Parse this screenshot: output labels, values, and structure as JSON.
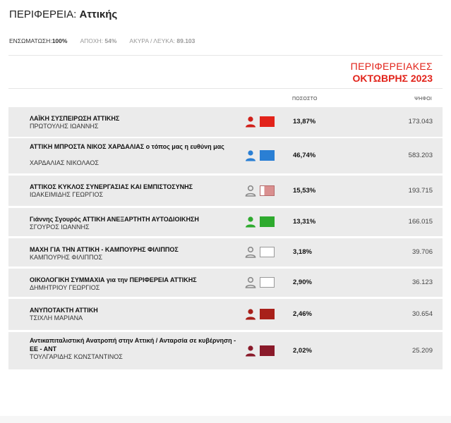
{
  "header": {
    "region_label": "ΠΕΡΙΦΕΡΕΙΑ:",
    "region_name": "Αττικής"
  },
  "stats": {
    "integration_label": "ΕΝΣΩΜΑΤΩΣΗ:",
    "integration_value": "100%",
    "abstention_label": "ΑΠΟΧΗ:",
    "abstention_value": "54%",
    "invalid_label": "ΑΚΥΡΑ / ΛΕΥΚΑ:",
    "invalid_value": "89.103"
  },
  "election": {
    "line1": "ΠΕΡΙΦΕΡΕΙΑΚΕΣ",
    "line2": "ΟΚΤΩΒΡΗΣ 2023"
  },
  "columns": {
    "percent": "ΠΟΣΟΣΤΟ",
    "votes": "ΨΗΦΟΙ"
  },
  "results": [
    {
      "party": "ΛΑΪΚΗ ΣΥΣΠΕΙΡΩΣΗ ΑΤΤΙΚΗΣ",
      "leader": "ΠΡΩΤΟΥΛΗΣ ΙΩΑΝΝΗΣ",
      "percent": "13,87%",
      "votes": "173.043",
      "color": "#e2231a",
      "person_color": "#d0201a",
      "icon": "person-icon"
    },
    {
      "party": "ΑΤΤΙΚΗ ΜΠΡΟΣΤΑ ΝΙΚΟΣ ΧΑΡΔΑΛΙΑΣ ο τόπος μας η ευθύνη μας",
      "leader": "ΧΑΡΔΑΛΙΑΣ ΝΙΚΟΛΑΟΣ",
      "percent": "46,74%",
      "votes": "583.203",
      "color": "#2a7fd4",
      "person_color": "#2a7fd4",
      "icon": "person-icon"
    },
    {
      "party": "ΑΤΤΙΚΟΣ ΚΥΚΛΟΣ ΣΥΝΕΡΓΑΣΙΑΣ ΚΑΙ ΕΜΠΙΣΤΟΣΥΝΗΣ",
      "leader": "ΙΩΑΚΕΙΜΙΔΗΣ ΓΕΩΡΓΙΟΣ",
      "percent": "15,53%",
      "votes": "193.715",
      "color": "#d98f8f",
      "person_color": "#8a8a8a",
      "icon": "person-outline-icon"
    },
    {
      "party": "Γιάννης Σγουρός ΑΤΤΙΚΗ ΑΝΕΞΑΡΤΗΤΗ ΑΥΤΟΔΙΟΙΚΗΣΗ",
      "leader": "ΣΓΟΥΡΟΣ ΙΩΑΝΝΗΣ",
      "percent": "13,31%",
      "votes": "166.015",
      "color": "#2eaa2e",
      "person_color": "#2eaa2e",
      "icon": "person-icon"
    },
    {
      "party": "ΜΑΧΗ ΓΙΑ ΤΗΝ ΑΤΤΙΚΗ - ΚΑΜΠΟΥΡΗΣ ΦΙΛΙΠΠΟΣ",
      "leader": "ΚΑΜΠΟΥΡΗΣ ΦΙΛΙΠΠΟΣ",
      "percent": "3,18%",
      "votes": "39.706",
      "color": "#ffffff",
      "person_color": "#8a8a8a",
      "icon": "person-outline-icon"
    },
    {
      "party": "ΟΙΚΟΛΟΓΙΚΗ ΣΥΜΜΑΧΙΑ για την ΠΕΡΙΦΕΡΕΙΑ ΑΤΤΙΚΗΣ",
      "leader": "ΔΗΜΗΤΡΙΟΥ ΓΕΩΡΓΙΟΣ",
      "percent": "2,90%",
      "votes": "36.123",
      "color": "#ffffff",
      "person_color": "#8a8a8a",
      "icon": "person-outline-icon"
    },
    {
      "party": "ΑΝΥΠΟΤΑΚΤΗ ΑΤΤΙΚΗ",
      "leader": "ΤΣΙΧΛΗ ΜΑΡΙΑΝΑ",
      "percent": "2,46%",
      "votes": "30.654",
      "color": "#a8201a",
      "person_color": "#a8201a",
      "icon": "person-icon"
    },
    {
      "party": "Αντικαπιταλιστική Ανατροπή στην Αττική / Ανταρσία σε κυβέρνηση - ΕΕ - ΑΝΤ",
      "leader": "ΤΟΥΛΓΑΡΙΔΗΣ ΚΩΝΣΤΑΝΤΙΝΟΣ",
      "percent": "2,02%",
      "votes": "25.209",
      "color": "#8a1a2a",
      "person_color": "#8a1a2a",
      "icon": "person-icon"
    }
  ]
}
